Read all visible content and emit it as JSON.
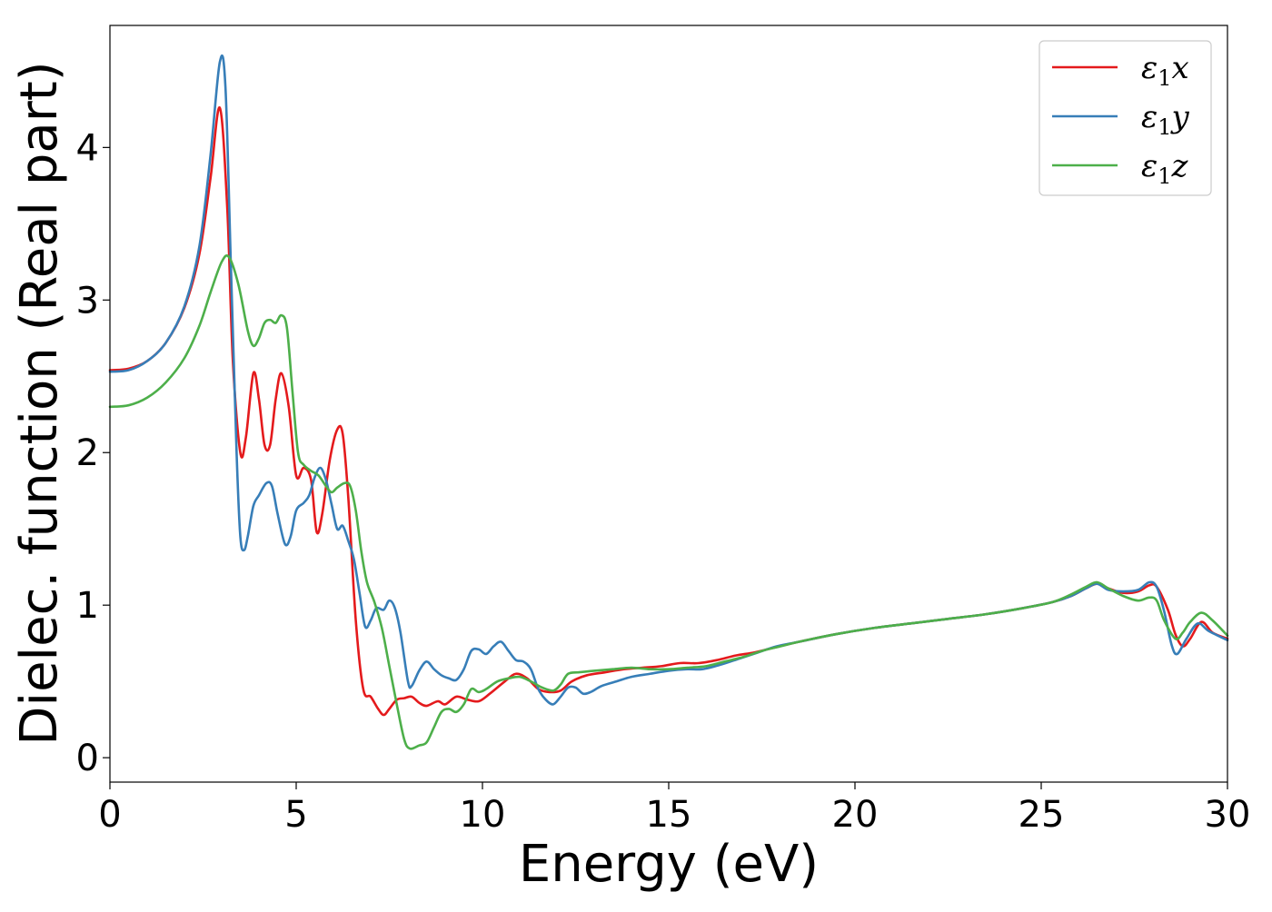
{
  "chart_data": {
    "type": "line",
    "title": "",
    "xlabel": "Energy (eV)",
    "ylabel": "Dielec. function (Real part)",
    "xlim": [
      0,
      30
    ],
    "ylim": [
      -0.16,
      4.8
    ],
    "xticks": [
      0,
      5,
      10,
      15,
      20,
      25,
      30
    ],
    "yticks": [
      0,
      1,
      2,
      3,
      4
    ],
    "grid": false,
    "legend_position": "top-right",
    "series": [
      {
        "name": "ε₁x",
        "legend_base": "ε",
        "legend_sub": "1",
        "legend_var": "x",
        "color": "#e41a1c",
        "points": [
          [
            0,
            2.54
          ],
          [
            0.5,
            2.55
          ],
          [
            1.0,
            2.6
          ],
          [
            1.5,
            2.72
          ],
          [
            2.0,
            2.95
          ],
          [
            2.4,
            3.3
          ],
          [
            2.7,
            3.8
          ],
          [
            2.95,
            4.26
          ],
          [
            3.15,
            3.6
          ],
          [
            3.3,
            2.6
          ],
          [
            3.5,
            2.0
          ],
          [
            3.65,
            2.1
          ],
          [
            3.85,
            2.52
          ],
          [
            4.0,
            2.35
          ],
          [
            4.15,
            2.05
          ],
          [
            4.3,
            2.05
          ],
          [
            4.45,
            2.35
          ],
          [
            4.6,
            2.52
          ],
          [
            4.8,
            2.3
          ],
          [
            5.0,
            1.85
          ],
          [
            5.2,
            1.9
          ],
          [
            5.4,
            1.82
          ],
          [
            5.55,
            1.48
          ],
          [
            5.7,
            1.6
          ],
          [
            5.9,
            1.95
          ],
          [
            6.1,
            2.15
          ],
          [
            6.25,
            2.12
          ],
          [
            6.4,
            1.7
          ],
          [
            6.6,
            0.9
          ],
          [
            6.8,
            0.45
          ],
          [
            7.0,
            0.4
          ],
          [
            7.2,
            0.32
          ],
          [
            7.35,
            0.28
          ],
          [
            7.5,
            0.32
          ],
          [
            7.7,
            0.38
          ],
          [
            7.9,
            0.39
          ],
          [
            8.1,
            0.4
          ],
          [
            8.3,
            0.36
          ],
          [
            8.5,
            0.34
          ],
          [
            8.8,
            0.37
          ],
          [
            9.0,
            0.35
          ],
          [
            9.3,
            0.4
          ],
          [
            9.6,
            0.38
          ],
          [
            9.9,
            0.37
          ],
          [
            10.2,
            0.42
          ],
          [
            10.6,
            0.5
          ],
          [
            10.9,
            0.55
          ],
          [
            11.2,
            0.52
          ],
          [
            11.5,
            0.45
          ],
          [
            11.8,
            0.43
          ],
          [
            12.1,
            0.44
          ],
          [
            12.4,
            0.5
          ],
          [
            12.8,
            0.54
          ],
          [
            13.3,
            0.56
          ],
          [
            13.8,
            0.58
          ],
          [
            14.3,
            0.59
          ],
          [
            14.8,
            0.6
          ],
          [
            15.3,
            0.62
          ],
          [
            15.8,
            0.62
          ],
          [
            16.3,
            0.64
          ],
          [
            16.8,
            0.67
          ],
          [
            17.3,
            0.69
          ],
          [
            17.8,
            0.72
          ],
          [
            18.5,
            0.76
          ],
          [
            19.5,
            0.81
          ],
          [
            20.5,
            0.85
          ],
          [
            21.5,
            0.88
          ],
          [
            22.5,
            0.91
          ],
          [
            23.5,
            0.94
          ],
          [
            24.5,
            0.98
          ],
          [
            25.3,
            1.02
          ],
          [
            25.8,
            1.06
          ],
          [
            26.2,
            1.11
          ],
          [
            26.5,
            1.14
          ],
          [
            26.8,
            1.11
          ],
          [
            27.2,
            1.08
          ],
          [
            27.6,
            1.09
          ],
          [
            27.9,
            1.13
          ],
          [
            28.1,
            1.12
          ],
          [
            28.4,
            0.97
          ],
          [
            28.6,
            0.81
          ],
          [
            28.8,
            0.73
          ],
          [
            29.0,
            0.78
          ],
          [
            29.3,
            0.89
          ],
          [
            29.6,
            0.82
          ],
          [
            30.0,
            0.78
          ]
        ]
      },
      {
        "name": "ε₁y",
        "legend_base": "ε",
        "legend_sub": "1",
        "legend_var": "y",
        "color": "#377eb8",
        "points": [
          [
            0,
            2.53
          ],
          [
            0.5,
            2.54
          ],
          [
            1.0,
            2.6
          ],
          [
            1.5,
            2.72
          ],
          [
            2.0,
            2.96
          ],
          [
            2.4,
            3.35
          ],
          [
            2.7,
            3.95
          ],
          [
            2.95,
            4.56
          ],
          [
            3.1,
            4.4
          ],
          [
            3.25,
            3.2
          ],
          [
            3.4,
            2.0
          ],
          [
            3.5,
            1.45
          ],
          [
            3.6,
            1.36
          ],
          [
            3.7,
            1.45
          ],
          [
            3.85,
            1.65
          ],
          [
            4.0,
            1.72
          ],
          [
            4.2,
            1.8
          ],
          [
            4.35,
            1.78
          ],
          [
            4.5,
            1.6
          ],
          [
            4.7,
            1.4
          ],
          [
            4.85,
            1.45
          ],
          [
            5.0,
            1.62
          ],
          [
            5.2,
            1.67
          ],
          [
            5.35,
            1.72
          ],
          [
            5.5,
            1.84
          ],
          [
            5.65,
            1.9
          ],
          [
            5.8,
            1.82
          ],
          [
            5.95,
            1.66
          ],
          [
            6.1,
            1.5
          ],
          [
            6.25,
            1.52
          ],
          [
            6.4,
            1.42
          ],
          [
            6.55,
            1.3
          ],
          [
            6.7,
            1.08
          ],
          [
            6.85,
            0.86
          ],
          [
            7.0,
            0.9
          ],
          [
            7.15,
            0.98
          ],
          [
            7.35,
            0.97
          ],
          [
            7.5,
            1.03
          ],
          [
            7.65,
            0.98
          ],
          [
            7.8,
            0.82
          ],
          [
            8.0,
            0.5
          ],
          [
            8.1,
            0.47
          ],
          [
            8.3,
            0.57
          ],
          [
            8.5,
            0.63
          ],
          [
            8.7,
            0.58
          ],
          [
            8.9,
            0.54
          ],
          [
            9.1,
            0.52
          ],
          [
            9.3,
            0.51
          ],
          [
            9.5,
            0.58
          ],
          [
            9.7,
            0.7
          ],
          [
            9.9,
            0.71
          ],
          [
            10.1,
            0.68
          ],
          [
            10.3,
            0.73
          ],
          [
            10.5,
            0.76
          ],
          [
            10.7,
            0.7
          ],
          [
            10.9,
            0.64
          ],
          [
            11.1,
            0.63
          ],
          [
            11.3,
            0.58
          ],
          [
            11.5,
            0.45
          ],
          [
            11.7,
            0.38
          ],
          [
            11.9,
            0.35
          ],
          [
            12.1,
            0.4
          ],
          [
            12.3,
            0.46
          ],
          [
            12.5,
            0.46
          ],
          [
            12.7,
            0.42
          ],
          [
            12.9,
            0.43
          ],
          [
            13.2,
            0.47
          ],
          [
            13.6,
            0.5
          ],
          [
            14.0,
            0.53
          ],
          [
            14.5,
            0.55
          ],
          [
            15.0,
            0.57
          ],
          [
            15.5,
            0.58
          ],
          [
            15.9,
            0.58
          ],
          [
            16.4,
            0.61
          ],
          [
            16.9,
            0.65
          ],
          [
            17.4,
            0.69
          ],
          [
            17.9,
            0.73
          ],
          [
            18.5,
            0.76
          ],
          [
            19.5,
            0.81
          ],
          [
            20.5,
            0.85
          ],
          [
            21.5,
            0.88
          ],
          [
            22.5,
            0.91
          ],
          [
            23.5,
            0.94
          ],
          [
            24.5,
            0.98
          ],
          [
            25.3,
            1.02
          ],
          [
            25.8,
            1.06
          ],
          [
            26.2,
            1.11
          ],
          [
            26.5,
            1.14
          ],
          [
            26.8,
            1.1
          ],
          [
            27.2,
            1.09
          ],
          [
            27.6,
            1.1
          ],
          [
            27.9,
            1.15
          ],
          [
            28.1,
            1.12
          ],
          [
            28.3,
            0.96
          ],
          [
            28.5,
            0.74
          ],
          [
            28.65,
            0.68
          ],
          [
            28.9,
            0.78
          ],
          [
            29.2,
            0.88
          ],
          [
            29.5,
            0.83
          ],
          [
            30.0,
            0.77
          ]
        ]
      },
      {
        "name": "ε₁z",
        "legend_base": "ε",
        "legend_sub": "1",
        "legend_var": "z",
        "color": "#4daf4a",
        "points": [
          [
            0,
            2.3
          ],
          [
            0.5,
            2.31
          ],
          [
            1.0,
            2.36
          ],
          [
            1.5,
            2.46
          ],
          [
            2.0,
            2.62
          ],
          [
            2.4,
            2.83
          ],
          [
            2.7,
            3.05
          ],
          [
            3.0,
            3.25
          ],
          [
            3.2,
            3.28
          ],
          [
            3.45,
            3.1
          ],
          [
            3.7,
            2.8
          ],
          [
            3.85,
            2.7
          ],
          [
            4.0,
            2.75
          ],
          [
            4.15,
            2.85
          ],
          [
            4.3,
            2.87
          ],
          [
            4.45,
            2.85
          ],
          [
            4.6,
            2.9
          ],
          [
            4.75,
            2.82
          ],
          [
            4.9,
            2.4
          ],
          [
            5.05,
            2.0
          ],
          [
            5.2,
            1.92
          ],
          [
            5.4,
            1.88
          ],
          [
            5.6,
            1.85
          ],
          [
            5.8,
            1.78
          ],
          [
            5.95,
            1.74
          ],
          [
            6.1,
            1.77
          ],
          [
            6.3,
            1.8
          ],
          [
            6.45,
            1.78
          ],
          [
            6.6,
            1.62
          ],
          [
            6.75,
            1.35
          ],
          [
            6.9,
            1.15
          ],
          [
            7.1,
            1.02
          ],
          [
            7.3,
            0.85
          ],
          [
            7.5,
            0.6
          ],
          [
            7.7,
            0.35
          ],
          [
            7.9,
            0.12
          ],
          [
            8.05,
            0.06
          ],
          [
            8.3,
            0.08
          ],
          [
            8.5,
            0.1
          ],
          [
            8.7,
            0.2
          ],
          [
            8.9,
            0.3
          ],
          [
            9.1,
            0.32
          ],
          [
            9.3,
            0.3
          ],
          [
            9.5,
            0.35
          ],
          [
            9.7,
            0.45
          ],
          [
            9.9,
            0.43
          ],
          [
            10.1,
            0.45
          ],
          [
            10.4,
            0.5
          ],
          [
            10.7,
            0.52
          ],
          [
            11.0,
            0.53
          ],
          [
            11.3,
            0.5
          ],
          [
            11.6,
            0.46
          ],
          [
            11.9,
            0.44
          ],
          [
            12.1,
            0.48
          ],
          [
            12.3,
            0.55
          ],
          [
            12.6,
            0.56
          ],
          [
            13.0,
            0.57
          ],
          [
            13.5,
            0.58
          ],
          [
            14.0,
            0.59
          ],
          [
            14.5,
            0.58
          ],
          [
            15.0,
            0.58
          ],
          [
            15.5,
            0.59
          ],
          [
            16.0,
            0.6
          ],
          [
            16.5,
            0.63
          ],
          [
            17.0,
            0.66
          ],
          [
            17.5,
            0.7
          ],
          [
            18.0,
            0.73
          ],
          [
            18.5,
            0.76
          ],
          [
            19.5,
            0.81
          ],
          [
            20.5,
            0.85
          ],
          [
            21.5,
            0.88
          ],
          [
            22.5,
            0.91
          ],
          [
            23.5,
            0.94
          ],
          [
            24.5,
            0.98
          ],
          [
            25.3,
            1.02
          ],
          [
            25.8,
            1.07
          ],
          [
            26.2,
            1.12
          ],
          [
            26.5,
            1.15
          ],
          [
            26.8,
            1.11
          ],
          [
            27.2,
            1.06
          ],
          [
            27.6,
            1.03
          ],
          [
            27.9,
            1.05
          ],
          [
            28.1,
            1.03
          ],
          [
            28.3,
            0.9
          ],
          [
            28.6,
            0.78
          ],
          [
            28.8,
            0.82
          ],
          [
            29.0,
            0.89
          ],
          [
            29.3,
            0.95
          ],
          [
            29.6,
            0.9
          ],
          [
            30.0,
            0.8
          ]
        ]
      }
    ]
  }
}
